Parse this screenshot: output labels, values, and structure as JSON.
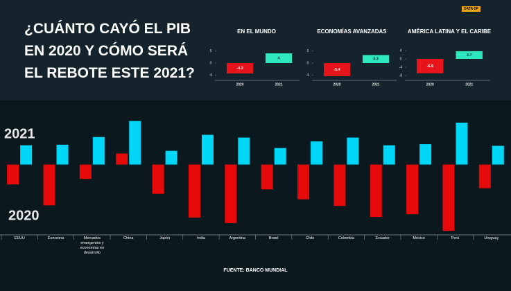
{
  "header": {
    "title_lines": [
      "¿CUÁNTO CAYÓ EL PIB",
      "EN 2020 Y CÓMO SERÁ",
      "EL REBOTE ESTE 2021?"
    ],
    "logo": "DATA DF"
  },
  "chart_data": [
    {
      "type": "bar",
      "title": "EN EL MUNDO",
      "categories": [
        "2020",
        "2021"
      ],
      "values": [
        -4.3,
        4
      ],
      "colors": [
        "#e8141b",
        "#2ee8c0"
      ],
      "ylim": [
        -6,
        6
      ],
      "yticks": [
        5,
        0,
        -5
      ]
    },
    {
      "type": "bar",
      "title": "ECONOMÍAS AVANZADAS",
      "categories": [
        "2020",
        "2021"
      ],
      "values": [
        -5.4,
        3.3
      ],
      "colors": [
        "#e8141b",
        "#2ee8c0"
      ],
      "ylim": [
        -6,
        6
      ],
      "yticks": [
        5,
        0,
        -5
      ]
    },
    {
      "type": "bar",
      "title": "AMÉRICA LATINA Y EL CARIBE",
      "categories": [
        "2020",
        "2021"
      ],
      "values": [
        -6.9,
        3.7
      ],
      "colors": [
        "#e8141b",
        "#2ee8c0"
      ],
      "ylim": [
        -9,
        5
      ],
      "yticks": [
        4,
        0,
        -4,
        -8
      ]
    },
    {
      "type": "grouped_bar",
      "categories": [
        "EEUU",
        "Eurozona",
        "Mercados emergentes y economías en desarrollo",
        "China",
        "Japón",
        "India",
        "Argentina",
        "Brasil",
        "Chile",
        "Colombia",
        "Ecuador",
        "México",
        "Perú",
        "Uruguay"
      ],
      "series": [
        {
          "name": "2020",
          "color": "#e60a0a",
          "values": [
            -3.6,
            -7.4,
            -2.6,
            2.0,
            -5.3,
            -9.6,
            -10.6,
            -4.5,
            -6.3,
            -7.5,
            -9.5,
            -9.0,
            -12.0,
            -4.3
          ]
        },
        {
          "name": "2021",
          "color": "#00d7f7",
          "values": [
            3.5,
            3.6,
            5.0,
            7.9,
            2.5,
            5.4,
            4.9,
            3.0,
            4.2,
            4.9,
            3.5,
            3.7,
            7.6,
            3.4
          ]
        }
      ],
      "ylim": [
        -12.5,
        11
      ]
    }
  ],
  "footer": {
    "source": "FUENTE: BANCO MUNDIAL"
  }
}
